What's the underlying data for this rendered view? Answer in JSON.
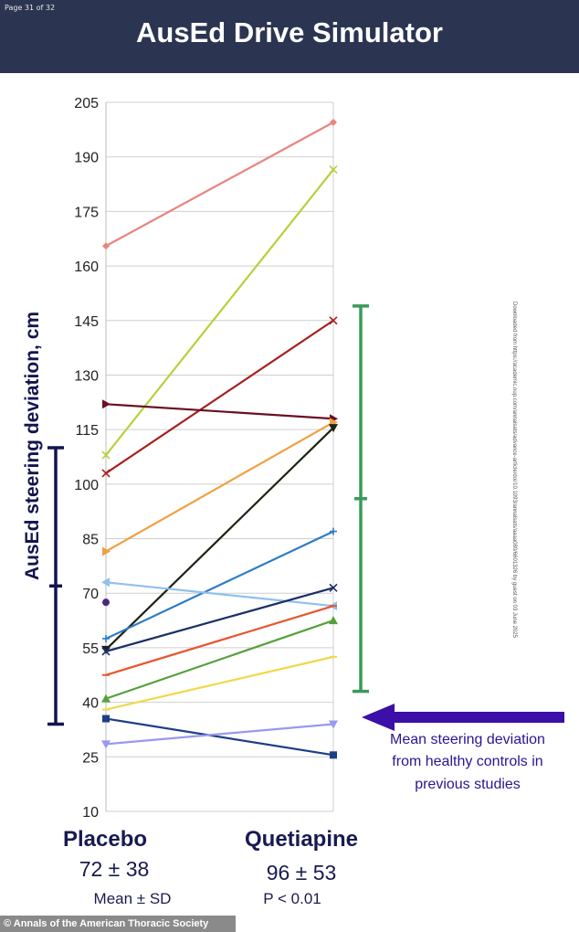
{
  "page_label": "Page 31 of 32",
  "title": "AusEd Drive Simulator",
  "copyright": "© Annals of the American Thoracic Society",
  "download_note": "Downloaded from https://academic.oup.com/annalsats/advance-article/doi/10.1093/annalsats/aaaa080/6601326 by guest on 03 June 2025",
  "groups": {
    "placebo": {
      "label": "Placebo",
      "stat": "72 ± 38",
      "note": "Mean ± SD"
    },
    "quetiapine": {
      "label": "Quetiapine",
      "stat": "96 ± 53",
      "note": "P < 0.01"
    }
  },
  "annotation": {
    "lines": [
      "Mean steering deviation",
      "from healthy controls in",
      "previous studies"
    ],
    "arrow_color": "#3b0fa8",
    "text_color": "#2a1590"
  },
  "chart_data": {
    "type": "line",
    "ylabel": "AusEd steering deviation, cm",
    "ylim": [
      10,
      205
    ],
    "yticks": [
      10,
      25,
      40,
      55,
      70,
      85,
      100,
      115,
      130,
      145,
      160,
      175,
      190,
      205
    ],
    "grid": true,
    "categories": [
      "Placebo",
      "Quetiapine"
    ],
    "series": [
      {
        "values": [
          165.5,
          199.5
        ],
        "color": "#e8847e",
        "marker": "diamond"
      },
      {
        "values": [
          108,
          186.5
        ],
        "color": "#b6d13a",
        "marker": "x"
      },
      {
        "values": [
          103,
          145
        ],
        "color": "#a8201e",
        "marker": "x"
      },
      {
        "values": [
          122,
          118
        ],
        "color": "#6a0f24",
        "marker": "triangle-right"
      },
      {
        "values": [
          81.5,
          117
        ],
        "color": "#f0a040",
        "marker": "triangle-right"
      },
      {
        "values": [
          54.5,
          115.5
        ],
        "color": "#1c2414",
        "marker": "triangle-down"
      },
      {
        "values": [
          57.5,
          87
        ],
        "color": "#2e7cc4",
        "marker": "plus"
      },
      {
        "values": [
          73,
          66.5
        ],
        "color": "#90c0ec",
        "marker": "triangle-left"
      },
      {
        "values": [
          54,
          71.5
        ],
        "color": "#1a2f66",
        "marker": "x"
      },
      {
        "values": [
          47.5,
          66.5
        ],
        "color": "#e8552e",
        "marker": "line"
      },
      {
        "values": [
          41,
          62.5
        ],
        "color": "#56a03c",
        "marker": "triangle"
      },
      {
        "values": [
          38,
          52.5
        ],
        "color": "#f0d848",
        "marker": "line"
      },
      {
        "values": [
          35.5,
          25.5
        ],
        "color": "#1c3e86",
        "marker": "square"
      },
      {
        "values": [
          28.5,
          34
        ],
        "color": "#9898f0",
        "marker": "triangle-down"
      },
      {
        "values": [
          67.5,
          null
        ],
        "color": "#4a2a7a",
        "marker": "circle"
      }
    ],
    "error_bars": [
      {
        "group": "Placebo",
        "mean": 72,
        "sd": 38,
        "color": "#141450"
      },
      {
        "group": "Quetiapine",
        "mean": 96,
        "sd": 53,
        "color": "#3a9a5a"
      }
    ],
    "reference_arrow_value": 36
  }
}
